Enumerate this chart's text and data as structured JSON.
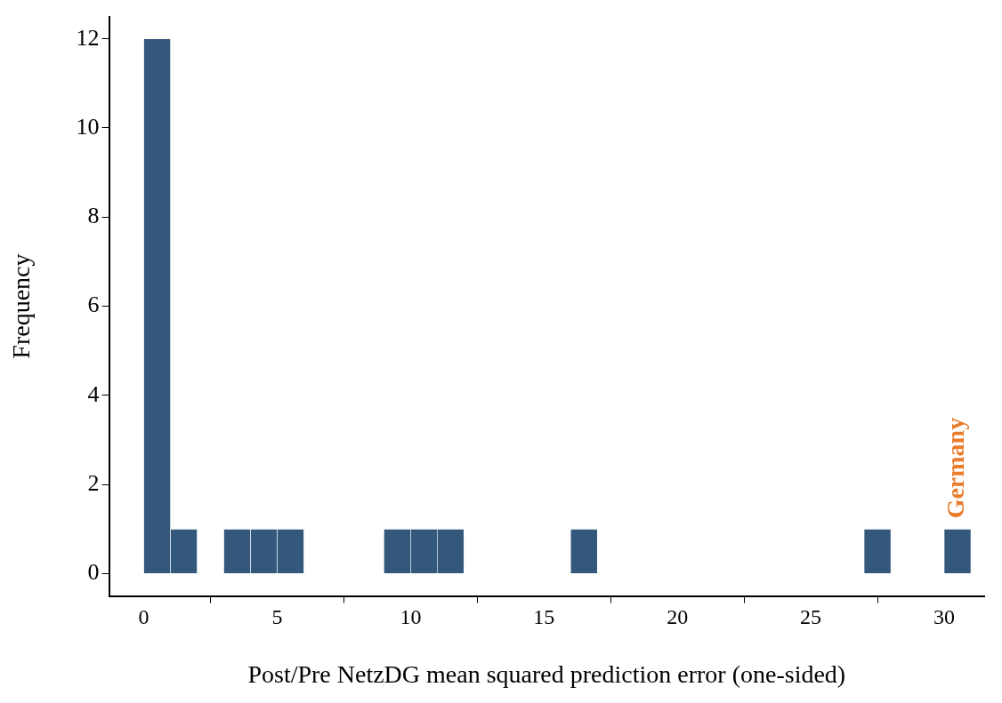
{
  "chart_data": {
    "type": "histogram",
    "xlabel": "Post/Pre NetzDG mean squared prediction error (one-sided)",
    "ylabel": "Frequency",
    "bins": [
      0,
      1,
      2,
      3,
      4,
      5,
      6,
      7,
      8,
      9,
      10,
      11,
      12,
      13,
      14,
      15,
      16,
      17,
      18,
      19,
      20,
      21,
      22,
      23,
      24,
      25,
      26,
      27,
      28,
      29,
      30,
      31
    ],
    "values": [
      12,
      1,
      0,
      1,
      1,
      1,
      0,
      0,
      0,
      1,
      1,
      1,
      0,
      0,
      0,
      0,
      1,
      0,
      0,
      0,
      0,
      0,
      0,
      0,
      0,
      0,
      0,
      1,
      0,
      0,
      1
    ],
    "color": "#34577c",
    "xlim": [
      -1.3,
      31.5
    ],
    "xticks": [
      0,
      5,
      10,
      15,
      20,
      25,
      30
    ],
    "ylim": [
      -0.5,
      12.5
    ],
    "yticks": [
      0,
      2,
      4,
      6,
      8,
      10,
      12
    ],
    "annotations": [
      {
        "text": "Germany",
        "x": 30.5,
        "y": 1
      }
    ]
  }
}
